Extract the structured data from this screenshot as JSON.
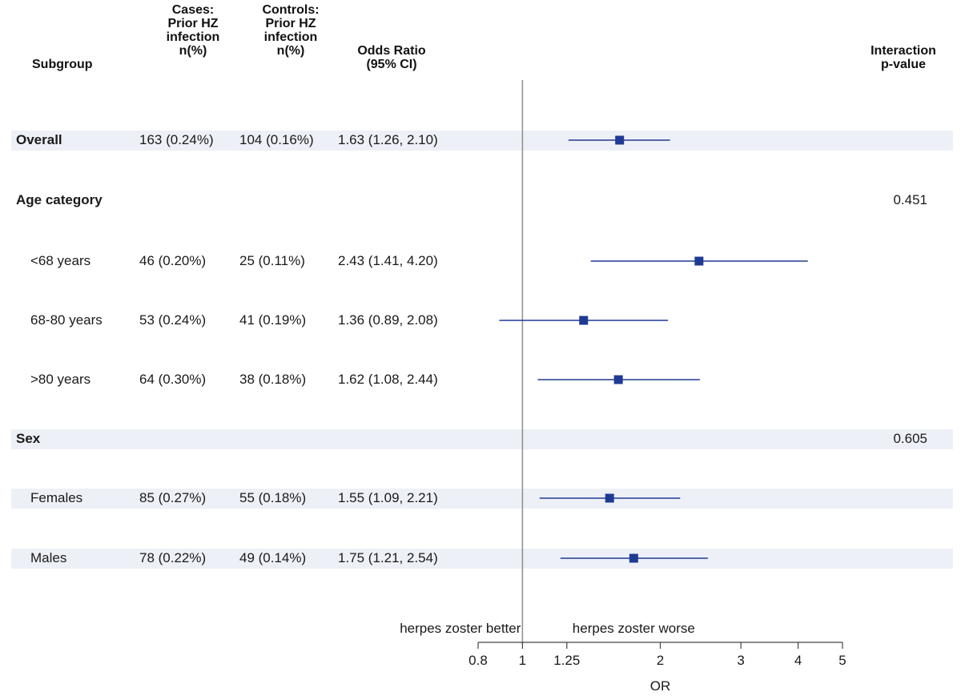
{
  "headers": {
    "subgroup": "Subgroup",
    "cases": "Cases:\nPrior HZ\ninfection\nn(%)",
    "controls": "Controls:\nPrior HZ\ninfection\nn(%)",
    "or": "Odds Ratio\n(95% CI)",
    "pvalue": "Interaction\np-value"
  },
  "rows": [
    {
      "label": "Overall",
      "bold": true,
      "shaded": true,
      "cases": "163 (0.24%)",
      "controls": "104 (0.16%)",
      "or_text": "1.63 (1.26, 2.10)",
      "pvalue": ""
    },
    {
      "label": "Age category",
      "bold": true,
      "shaded": false,
      "cases": "",
      "controls": "",
      "or_text": "",
      "pvalue": "0.451"
    },
    {
      "label": "<68 years",
      "bold": false,
      "shaded": false,
      "cases": "46 (0.20%)",
      "controls": "25 (0.11%)",
      "or_text": "2.43 (1.41, 4.20)",
      "pvalue": ""
    },
    {
      "label": "68-80 years",
      "bold": false,
      "shaded": false,
      "cases": "53 (0.24%)",
      "controls": "41 (0.19%)",
      "or_text": "1.36 (0.89, 2.08)",
      "pvalue": ""
    },
    {
      "label": ">80 years",
      "bold": false,
      "shaded": false,
      "cases": "64 (0.30%)",
      "controls": "38 (0.18%)",
      "or_text": "1.62 (1.08, 2.44)",
      "pvalue": ""
    },
    {
      "label": "Sex",
      "bold": true,
      "shaded": true,
      "cases": "",
      "controls": "",
      "or_text": "",
      "pvalue": "0.605"
    },
    {
      "label": "Females",
      "bold": false,
      "shaded": true,
      "cases": "85 (0.27%)",
      "controls": "55 (0.18%)",
      "or_text": "1.55 (1.09, 2.21)",
      "pvalue": ""
    },
    {
      "label": "Males",
      "bold": false,
      "shaded": true,
      "cases": "78 (0.22%)",
      "controls": "49 (0.14%)",
      "or_text": "1.75 (1.21, 2.54)",
      "pvalue": ""
    }
  ],
  "chart_data": {
    "type": "forest",
    "scale": "log",
    "xlabel": "OR",
    "xlim": [
      0.8,
      5
    ],
    "ticks": [
      0.8,
      1,
      1.25,
      2,
      3,
      4,
      5
    ],
    "tick_labels": [
      "0.8",
      "1",
      "1.25",
      "2",
      "3",
      "4",
      "5"
    ],
    "reference_line": 1,
    "annotation_left": "herpes zoster better",
    "annotation_right": "herpes zoster  worse",
    "points": [
      {
        "label": "Overall",
        "or": 1.63,
        "lower": 1.26,
        "upper": 2.1
      },
      {
        "label": "<68 years",
        "or": 2.43,
        "lower": 1.41,
        "upper": 4.2
      },
      {
        "label": "68-80 years",
        "or": 1.36,
        "lower": 0.89,
        "upper": 2.08
      },
      {
        "label": ">80 years",
        "or": 1.62,
        "lower": 1.08,
        "upper": 2.44
      },
      {
        "label": "Females",
        "or": 1.55,
        "lower": 1.09,
        "upper": 2.21
      },
      {
        "label": "Males",
        "or": 1.75,
        "lower": 1.21,
        "upper": 2.54
      }
    ],
    "colors": {
      "marker": "#1f3a93",
      "ci_line": "#1f3a93",
      "ref_line": "#8c8c94",
      "axis": "#444444"
    }
  }
}
